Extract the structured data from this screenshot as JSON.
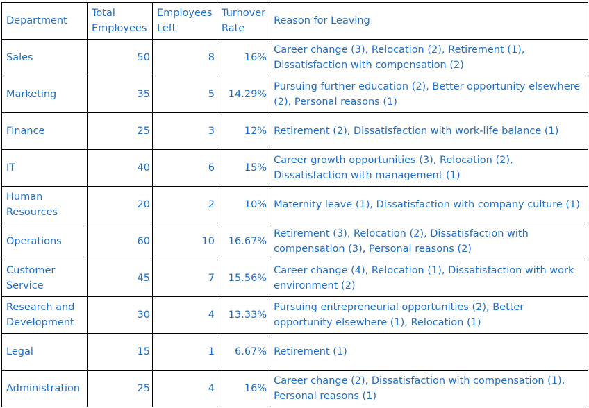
{
  "headers": {
    "department": "Department",
    "total_employees": "Total Employees",
    "employees_left": "Employees Left",
    "turnover_rate": "Turnover Rate",
    "reason": "Reason for Leaving"
  },
  "rows": [
    {
      "department": "Sales",
      "total": "50",
      "left": "8",
      "rate": "16%",
      "reason": "Career change (3), Relocation (2), Retirement (1), Dissatisfaction with compensation (2)"
    },
    {
      "department": "Marketing",
      "total": "35",
      "left": "5",
      "rate": "14.29%",
      "reason": "Pursuing further education (2), Better opportunity elsewhere (2), Personal reasons (1)"
    },
    {
      "department": "Finance",
      "total": "25",
      "left": "3",
      "rate": "12%",
      "reason": "Retirement (2), Dissatisfaction with work-life balance (1)"
    },
    {
      "department": "IT",
      "total": "40",
      "left": "6",
      "rate": "15%",
      "reason": "Career growth opportunities (3), Relocation (2), Dissatisfaction with management (1)"
    },
    {
      "department": "Human Resources",
      "total": "20",
      "left": "2",
      "rate": "10%",
      "reason": "Maternity leave (1), Dissatisfaction with company culture (1)"
    },
    {
      "department": "Operations",
      "total": "60",
      "left": "10",
      "rate": "16.67%",
      "reason": "Retirement (3), Relocation (2), Dissatisfaction with compensation (3), Personal reasons (2)"
    },
    {
      "department": "Customer Service",
      "total": "45",
      "left": "7",
      "rate": "15.56%",
      "reason": "Career change (4), Relocation (1), Dissatisfaction with work environment (2)"
    },
    {
      "department": "Research and Development",
      "total": "30",
      "left": "4",
      "rate": "13.33%",
      "reason": "Pursuing entrepreneurial opportunities (2), Better opportunity elsewhere (1), Relocation (1)"
    },
    {
      "department": "Legal",
      "total": "15",
      "left": "1",
      "rate": "6.67%",
      "reason": "Retirement (1)"
    },
    {
      "department": "Administration",
      "total": "25",
      "left": "4",
      "rate": "16%",
      "reason": "Career change (2), Dissatisfaction with compensation (1), Personal reasons (1)"
    }
  ],
  "colors": {
    "text": "#1f6fc5",
    "border": "#000000",
    "background": "#ffffff"
  }
}
